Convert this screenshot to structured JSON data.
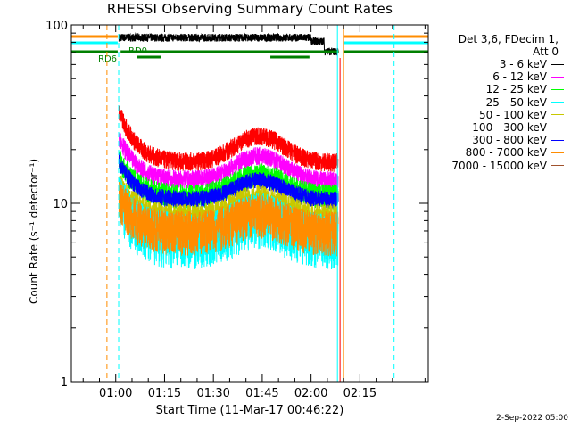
{
  "chart_data": {
    "type": "line",
    "title": "RHESSI Observing Summary Count Rates",
    "xlabel": "Start Time (11-Mar-17 00:46:22)",
    "ylabel": "Count Rate (s⁻¹ detector⁻¹)",
    "y_scale": "log",
    "ylim": [
      1,
      100
    ],
    "y_ticks": [
      "1",
      "10",
      "100"
    ],
    "x_ticks": [
      "01:00",
      "01:15",
      "01:30",
      "01:45",
      "02:00",
      "02:15"
    ],
    "x_tick_minutes": [
      60,
      75,
      90,
      105,
      120,
      135
    ],
    "xlim_minutes": [
      46.37,
      156
    ],
    "legend_header": [
      "Det 3,6, FDecim 1,",
      "Att 0"
    ],
    "legend_placement": "right-outside",
    "series": [
      {
        "name": "3 - 6 keV",
        "color": "#000000"
      },
      {
        "name": "6 - 12 keV",
        "color": "#ff00ff"
      },
      {
        "name": "12 - 25 keV",
        "color": "#00ff00"
      },
      {
        "name": "25 - 50 keV",
        "color": "#00ffff"
      },
      {
        "name": "50 - 100 keV",
        "color": "#c8c800"
      },
      {
        "name": "100 - 300 keV",
        "color": "#ff0000"
      },
      {
        "name": "300 - 800 keV",
        "color": "#0000ff"
      },
      {
        "name": "800 - 7000 keV",
        "color": "#ff8c00"
      },
      {
        "name": "7000 - 15000 keV",
        "color": "#a0522d"
      }
    ],
    "annotations": [
      "RD6",
      "RD0"
    ],
    "footer": "2-Sep-2022 05:00"
  }
}
